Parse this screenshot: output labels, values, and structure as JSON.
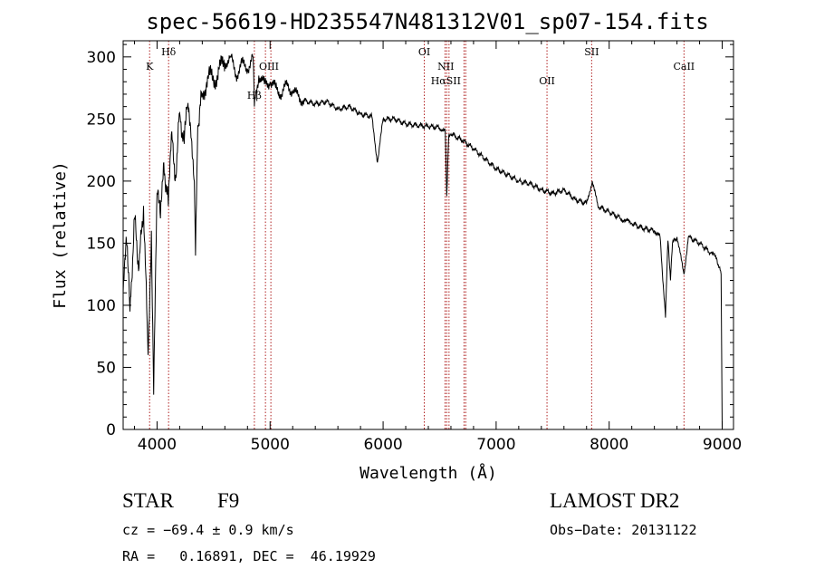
{
  "chart_data": {
    "type": "line",
    "title": "spec-56619-HD235547N481312V01_sp07-154.fits",
    "xlabel": "Wavelength (Å)",
    "ylabel": "Flux (relative)",
    "xlim": [
      3700,
      9100
    ],
    "ylim": [
      0,
      313
    ],
    "x_ticks": [
      4000,
      5000,
      6000,
      7000,
      8000,
      9000
    ],
    "y_ticks": [
      0,
      50,
      100,
      150,
      200,
      250,
      300
    ],
    "series": [
      {
        "name": "flux",
        "x": [
          3700,
          3730,
          3760,
          3800,
          3840,
          3880,
          3920,
          3950,
          3970,
          4000,
          4030,
          4060,
          4100,
          4130,
          4160,
          4200,
          4240,
          4270,
          4300,
          4330,
          4340,
          4360,
          4400,
          4450,
          4500,
          4550,
          4600,
          4650,
          4700,
          4750,
          4800,
          4850,
          4861,
          4900,
          4950,
          5000,
          5050,
          5100,
          5150,
          5200,
          5250,
          5300,
          5400,
          5500,
          5600,
          5700,
          5800,
          5900,
          5950,
          6000,
          6100,
          6200,
          6300,
          6400,
          6500,
          6550,
          6563,
          6580,
          6600,
          6700,
          6800,
          6900,
          7000,
          7100,
          7200,
          7300,
          7400,
          7500,
          7600,
          7700,
          7800,
          7850,
          7900,
          8000,
          8100,
          8150,
          8200,
          8300,
          8400,
          8450,
          8498,
          8520,
          8542,
          8560,
          8600,
          8662,
          8700,
          8800,
          8900,
          8950,
          8990,
          9000
        ],
        "y": [
          110,
          150,
          95,
          170,
          130,
          180,
          60,
          160,
          28,
          190,
          170,
          215,
          180,
          240,
          200,
          255,
          230,
          260,
          235,
          200,
          140,
          245,
          270,
          285,
          280,
          290,
          295,
          300,
          285,
          295,
          290,
          300,
          260,
          285,
          278,
          280,
          275,
          270,
          278,
          272,
          268,
          265,
          262,
          264,
          258,
          260,
          254,
          252,
          215,
          250,
          250,
          246,
          245,
          244,
          243,
          240,
          188,
          236,
          238,
          233,
          226,
          218,
          210,
          205,
          200,
          198,
          193,
          190,
          193,
          185,
          182,
          200,
          180,
          175,
          170,
          168,
          166,
          162,
          160,
          155,
          90,
          152,
          120,
          150,
          155,
          125,
          155,
          150,
          142,
          138,
          125,
          0
        ]
      }
    ],
    "spectral_lines": [
      {
        "label": "K",
        "x": 3934
      },
      {
        "label": "Hδ",
        "x": 4102
      },
      {
        "label": "Hβ",
        "x": 4861
      },
      {
        "label": "OIII",
        "x": 4959
      },
      {
        "label": "OIII",
        "x": 5007
      },
      {
        "label": "OI",
        "x": 6364
      },
      {
        "label": "NII",
        "x": 6548
      },
      {
        "label": "Hα",
        "x": 6563
      },
      {
        "label": "NII",
        "x": 6583
      },
      {
        "label": "SII",
        "x": 6716
      },
      {
        "label": "SII",
        "x": 6731
      },
      {
        "label": "OII",
        "x": 7450
      },
      {
        "label": "SII",
        "x": 7845
      },
      {
        "label": "CaII",
        "x": 8662
      }
    ],
    "line_label_texts": [
      "K",
      "Hδ",
      "Hβ",
      "OIII",
      "OI",
      "NII",
      "HαSII",
      "OII",
      "SII",
      "CaII"
    ]
  },
  "info": {
    "object_type": "STAR",
    "spectral_class": "F9",
    "survey": "LAMOST DR2",
    "redshift": "cz = −69.4 ± 0.9 km/s",
    "obs_date": "Obs−Date: 20131122",
    "coords": "RA =   0.16891, DEC =  46.19929"
  },
  "colors": {
    "spectrum": "#000000",
    "line_markers": "#b02020",
    "background": "#ffffff"
  }
}
